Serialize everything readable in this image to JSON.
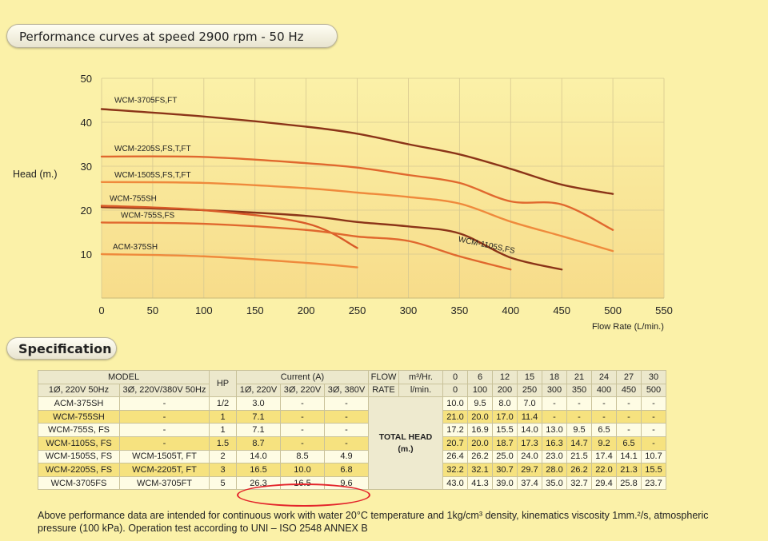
{
  "header": {
    "title": "Performance curves at speed 2900 rpm - 50 Hz",
    "spec_title": "Specification"
  },
  "chart_data": {
    "type": "line",
    "title": "Performance curves at speed 2900 rpm - 50 Hz",
    "xlabel": "Flow Rate (L/min.)",
    "ylabel": "Head (m.)",
    "xlim": [
      0,
      550
    ],
    "ylim": [
      0,
      50
    ],
    "xticks": [
      0,
      50,
      100,
      150,
      200,
      250,
      300,
      350,
      400,
      450,
      500,
      550
    ],
    "yticks": [
      10,
      20,
      30,
      40,
      50
    ],
    "grid": true,
    "series": [
      {
        "name": "WCM-3705FS,FT",
        "color": "#8b3418",
        "x": [
          0,
          100,
          200,
          250,
          300,
          350,
          400,
          450,
          500
        ],
        "y": [
          43.0,
          41.3,
          39.0,
          37.4,
          35.0,
          32.7,
          29.4,
          25.8,
          23.7
        ]
      },
      {
        "name": "WCM-2205S,FS,T,FT",
        "color": "#e0682e",
        "x": [
          0,
          100,
          200,
          250,
          300,
          350,
          400,
          450,
          500
        ],
        "y": [
          32.2,
          32.1,
          30.7,
          29.7,
          28.0,
          26.2,
          22.0,
          21.3,
          15.5
        ]
      },
      {
        "name": "WCM-1505S,FS,T,FT",
        "color": "#ef8a3c",
        "x": [
          0,
          100,
          200,
          250,
          300,
          350,
          400,
          450,
          500
        ],
        "y": [
          26.4,
          26.2,
          25.0,
          24.0,
          23.0,
          21.5,
          17.4,
          14.1,
          10.7
        ]
      },
      {
        "name": "WCM-1105S,FS",
        "color": "#8b3418",
        "x": [
          0,
          100,
          200,
          250,
          300,
          350,
          400,
          450
        ],
        "y": [
          20.7,
          20.0,
          18.7,
          17.3,
          16.3,
          14.7,
          9.2,
          6.5
        ]
      },
      {
        "name": "WCM-755SH",
        "color": "#d85a28",
        "x": [
          0,
          100,
          200,
          250
        ],
        "y": [
          21.0,
          20.0,
          17.0,
          11.4
        ]
      },
      {
        "name": "WCM-755S,FS",
        "color": "#e0682e",
        "x": [
          0,
          100,
          200,
          250,
          300,
          350,
          400
        ],
        "y": [
          17.2,
          16.9,
          15.5,
          14.0,
          13.0,
          9.5,
          6.5
        ]
      },
      {
        "name": "ACM-375SH",
        "color": "#ef8a3c",
        "x": [
          0,
          100,
          200,
          250
        ],
        "y": [
          10.0,
          9.5,
          8.0,
          7.0
        ]
      }
    ]
  },
  "table": {
    "model_header": "MODEL",
    "single_phase_header": "1Ø, 220V 50Hz",
    "three_phase_header": "3Ø, 220V/380V 50Hz",
    "hp_header": "HP",
    "current_header": "Current (A)",
    "current_sub": [
      "1Ø, 220V",
      "3Ø, 220V",
      "3Ø, 380V"
    ],
    "flow_label": "FLOW",
    "rate_label": "RATE",
    "unit_m3": "m³/Hr.",
    "unit_lmin": "l/min.",
    "flow_m3": [
      "0",
      "6",
      "12",
      "15",
      "18",
      "21",
      "24",
      "27",
      "30"
    ],
    "flow_lmin": [
      "0",
      "100",
      "200",
      "250",
      "300",
      "350",
      "400",
      "450",
      "500"
    ],
    "total_head_label": "TOTAL HEAD",
    "total_head_unit": "(m.)",
    "rows": [
      {
        "m1": "ACM-375SH",
        "m3": "-",
        "hp": "1/2",
        "c1": "3.0",
        "c2": "-",
        "c3": "-",
        "head": [
          "10.0",
          "9.5",
          "8.0",
          "7.0",
          "-",
          "-",
          "-",
          "-",
          "-"
        ]
      },
      {
        "m1": "WCM-755SH",
        "m3": "-",
        "hp": "1",
        "c1": "7.1",
        "c2": "-",
        "c3": "-",
        "head": [
          "21.0",
          "20.0",
          "17.0",
          "11.4",
          "-",
          "-",
          "-",
          "-",
          "-"
        ]
      },
      {
        "m1": "WCM-755S, FS",
        "m3": "-",
        "hp": "1",
        "c1": "7.1",
        "c2": "-",
        "c3": "-",
        "head": [
          "17.2",
          "16.9",
          "15.5",
          "14.0",
          "13.0",
          "9.5",
          "6.5",
          "-",
          "-"
        ]
      },
      {
        "m1": "WCM-1105S, FS",
        "m3": "-",
        "hp": "1.5",
        "c1": "8.7",
        "c2": "-",
        "c3": "-",
        "head": [
          "20.7",
          "20.0",
          "18.7",
          "17.3",
          "16.3",
          "14.7",
          "9.2",
          "6.5",
          "-"
        ]
      },
      {
        "m1": "WCM-1505S, FS",
        "m3": "WCM-1505T, FT",
        "hp": "2",
        "c1": "14.0",
        "c2": "8.5",
        "c3": "4.9",
        "head": [
          "26.4",
          "26.2",
          "25.0",
          "24.0",
          "23.0",
          "21.5",
          "17.4",
          "14.1",
          "10.7"
        ]
      },
      {
        "m1": "WCM-2205S, FS",
        "m3": "WCM-2205T, FT",
        "hp": "3",
        "c1": "16.5",
        "c2": "10.0",
        "c3": "6.8",
        "head": [
          "32.2",
          "32.1",
          "30.7",
          "29.7",
          "28.0",
          "26.2",
          "22.0",
          "21.3",
          "15.5"
        ]
      },
      {
        "m1": "WCM-3705FS",
        "m3": "WCM-3705FT",
        "hp": "5",
        "c1": "26.3",
        "c2": "16.5",
        "c3": "9.6",
        "head": [
          "43.0",
          "41.3",
          "39.0",
          "37.4",
          "35.0",
          "32.7",
          "29.4",
          "25.8",
          "23.7"
        ]
      }
    ]
  },
  "footnote": {
    "line1": "Above performance data are intended for continuous work with water 20°C temperature and 1kg/cm³ density, kinematics viscosity 1mm.²/s, atmospheric",
    "line2": "pressure (100 kPa). Operation test according to UNI – ISO 2548 ANNEX B"
  }
}
